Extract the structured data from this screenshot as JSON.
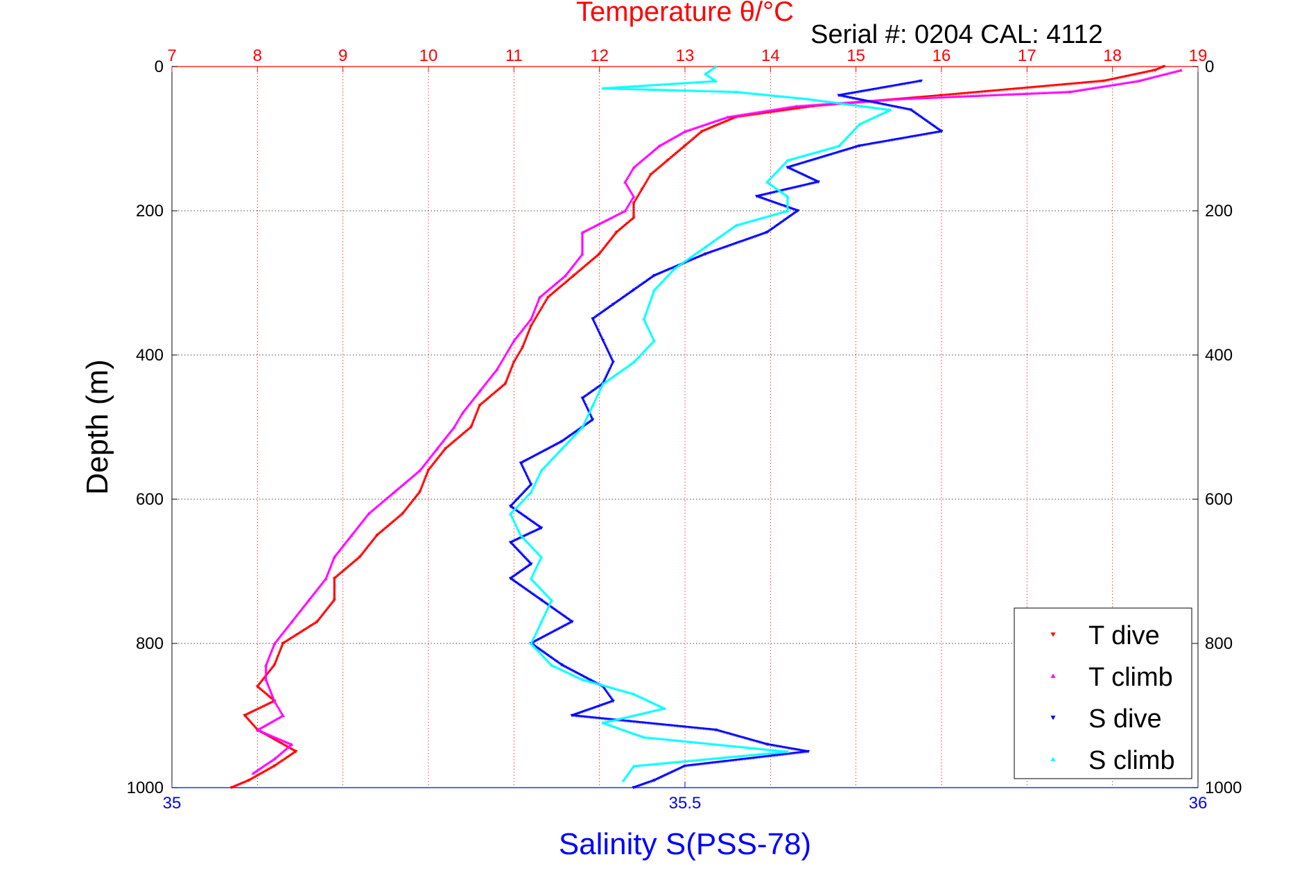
{
  "chart_data": {
    "type": "scatter",
    "title": "Temperature θ/°C",
    "subtitle": "Serial #: 0204  CAL: 4112",
    "ylabel": "Depth (m)",
    "xlabel_bottom": "Salinity S(PSS-78)",
    "y_axis": {
      "range": [
        0,
        1000
      ],
      "inverted": true,
      "ticks": [
        0,
        200,
        400,
        600,
        800,
        1000
      ],
      "grid": true
    },
    "x_top_axis": {
      "quantity": "temperature",
      "range": [
        7,
        19
      ],
      "ticks": [
        7,
        8,
        9,
        10,
        11,
        12,
        13,
        14,
        15,
        16,
        17,
        18,
        19
      ],
      "grid": true,
      "color": "#ff0000"
    },
    "x_bottom_axis": {
      "quantity": "salinity",
      "range": [
        35,
        36
      ],
      "ticks": [
        "35",
        "35.5",
        "36"
      ],
      "color": "#0000ff"
    },
    "legend": {
      "position": "bottom-right"
    },
    "series": [
      {
        "name": "T dive",
        "axis": "top",
        "marker": "triangle-down",
        "color": "#ff0000",
        "points": [
          [
            18.6,
            0
          ],
          [
            18.5,
            5
          ],
          [
            17.9,
            20
          ],
          [
            16.0,
            40
          ],
          [
            14.5,
            55
          ],
          [
            13.6,
            70
          ],
          [
            13.2,
            90
          ],
          [
            13.0,
            110
          ],
          [
            12.8,
            130
          ],
          [
            12.6,
            150
          ],
          [
            12.5,
            170
          ],
          [
            12.4,
            190
          ],
          [
            12.4,
            210
          ],
          [
            12.2,
            230
          ],
          [
            12.0,
            260
          ],
          [
            11.7,
            290
          ],
          [
            11.4,
            320
          ],
          [
            11.2,
            360
          ],
          [
            11.1,
            390
          ],
          [
            11.0,
            410
          ],
          [
            10.9,
            440
          ],
          [
            10.6,
            470
          ],
          [
            10.5,
            500
          ],
          [
            10.2,
            530
          ],
          [
            10.0,
            560
          ],
          [
            9.9,
            590
          ],
          [
            9.7,
            620
          ],
          [
            9.4,
            650
          ],
          [
            9.2,
            680
          ],
          [
            8.9,
            710
          ],
          [
            8.9,
            740
          ],
          [
            8.7,
            770
          ],
          [
            8.3,
            800
          ],
          [
            8.2,
            830
          ],
          [
            8.0,
            860
          ],
          [
            8.2,
            880
          ],
          [
            7.85,
            900
          ],
          [
            8.0,
            920
          ],
          [
            8.45,
            950
          ],
          [
            8.2,
            970
          ],
          [
            7.9,
            990
          ],
          [
            7.7,
            1000
          ]
        ]
      },
      {
        "name": "T climb",
        "axis": "top",
        "marker": "triangle-up",
        "color": "#ff00ff",
        "points": [
          [
            18.8,
            5
          ],
          [
            18.3,
            20
          ],
          [
            17.5,
            35
          ],
          [
            15.5,
            45
          ],
          [
            14.3,
            55
          ],
          [
            13.5,
            70
          ],
          [
            13.0,
            90
          ],
          [
            12.7,
            110
          ],
          [
            12.4,
            140
          ],
          [
            12.3,
            160
          ],
          [
            12.4,
            180
          ],
          [
            12.3,
            200
          ],
          [
            11.8,
            230
          ],
          [
            11.8,
            260
          ],
          [
            11.6,
            290
          ],
          [
            11.3,
            320
          ],
          [
            11.2,
            350
          ],
          [
            11.0,
            380
          ],
          [
            10.8,
            420
          ],
          [
            10.6,
            450
          ],
          [
            10.4,
            480
          ],
          [
            10.3,
            500
          ],
          [
            10.1,
            530
          ],
          [
            9.9,
            560
          ],
          [
            9.6,
            590
          ],
          [
            9.3,
            620
          ],
          [
            9.1,
            650
          ],
          [
            8.9,
            680
          ],
          [
            8.8,
            710
          ],
          [
            8.6,
            740
          ],
          [
            8.4,
            770
          ],
          [
            8.2,
            800
          ],
          [
            8.1,
            830
          ],
          [
            8.1,
            850
          ],
          [
            8.2,
            880
          ],
          [
            8.3,
            900
          ],
          [
            8.0,
            920
          ],
          [
            8.4,
            940
          ],
          [
            8.2,
            960
          ],
          [
            7.95,
            980
          ]
        ]
      },
      {
        "name": "S dive",
        "axis": "bottom",
        "marker": "triangle-down",
        "color": "#0000ff",
        "points": [
          [
            35.73,
            20
          ],
          [
            35.65,
            40
          ],
          [
            35.72,
            60
          ],
          [
            35.75,
            90
          ],
          [
            35.67,
            110
          ],
          [
            35.6,
            140
          ],
          [
            35.63,
            160
          ],
          [
            35.57,
            180
          ],
          [
            35.61,
            200
          ],
          [
            35.58,
            230
          ],
          [
            35.52,
            260
          ],
          [
            35.47,
            290
          ],
          [
            35.45,
            310
          ],
          [
            35.43,
            330
          ],
          [
            35.41,
            350
          ],
          [
            35.42,
            380
          ],
          [
            35.43,
            410
          ],
          [
            35.42,
            440
          ],
          [
            35.4,
            460
          ],
          [
            35.41,
            490
          ],
          [
            35.38,
            520
          ],
          [
            35.34,
            550
          ],
          [
            35.35,
            580
          ],
          [
            35.33,
            610
          ],
          [
            35.36,
            640
          ],
          [
            35.33,
            660
          ],
          [
            35.35,
            690
          ],
          [
            35.33,
            710
          ],
          [
            35.36,
            740
          ],
          [
            35.39,
            770
          ],
          [
            35.35,
            800
          ],
          [
            35.38,
            830
          ],
          [
            35.42,
            860
          ],
          [
            35.43,
            880
          ],
          [
            35.39,
            900
          ],
          [
            35.53,
            920
          ],
          [
            35.58,
            940
          ],
          [
            35.62,
            950
          ],
          [
            35.5,
            970
          ],
          [
            35.47,
            990
          ],
          [
            35.45,
            1000
          ]
        ]
      },
      {
        "name": "S climb",
        "axis": "bottom",
        "marker": "triangle-up",
        "color": "#00ffff",
        "points": [
          [
            35.53,
            0
          ],
          [
            35.52,
            10
          ],
          [
            35.53,
            20
          ],
          [
            35.42,
            30
          ],
          [
            35.55,
            35
          ],
          [
            35.62,
            45
          ],
          [
            35.7,
            60
          ],
          [
            35.67,
            80
          ],
          [
            35.65,
            110
          ],
          [
            35.6,
            130
          ],
          [
            35.58,
            160
          ],
          [
            35.6,
            180
          ],
          [
            35.6,
            200
          ],
          [
            35.55,
            220
          ],
          [
            35.52,
            250
          ],
          [
            35.49,
            280
          ],
          [
            35.47,
            310
          ],
          [
            35.46,
            350
          ],
          [
            35.47,
            380
          ],
          [
            35.45,
            410
          ],
          [
            35.42,
            440
          ],
          [
            35.41,
            470
          ],
          [
            35.4,
            500
          ],
          [
            35.38,
            530
          ],
          [
            35.36,
            560
          ],
          [
            35.35,
            590
          ],
          [
            35.33,
            620
          ],
          [
            35.34,
            650
          ],
          [
            35.36,
            680
          ],
          [
            35.35,
            710
          ],
          [
            35.37,
            740
          ],
          [
            35.36,
            770
          ],
          [
            35.35,
            800
          ],
          [
            35.37,
            830
          ],
          [
            35.4,
            850
          ],
          [
            35.45,
            870
          ],
          [
            35.48,
            890
          ],
          [
            35.42,
            910
          ],
          [
            35.46,
            930
          ],
          [
            35.6,
            950
          ],
          [
            35.45,
            970
          ],
          [
            35.44,
            990
          ]
        ]
      }
    ]
  }
}
